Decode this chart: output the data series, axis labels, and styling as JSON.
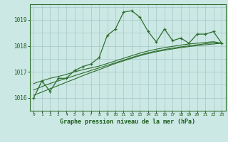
{
  "title": "Graphe pression niveau de la mer (hPa)",
  "bg_color": "#cce8e4",
  "grid_color": "#aacccc",
  "line_color": "#2d6e2d",
  "marker_color": "#2d6e2d",
  "x_labels": [
    "0",
    "1",
    "2",
    "3",
    "4",
    "5",
    "6",
    "7",
    "8",
    "9",
    "10",
    "11",
    "12",
    "13",
    "14",
    "15",
    "16",
    "17",
    "18",
    "19",
    "20",
    "21",
    "22",
    "23"
  ],
  "ylim": [
    1015.5,
    1019.6
  ],
  "yticks": [
    1016,
    1017,
    1018,
    1019
  ],
  "main_series": [
    1016.0,
    1016.65,
    1016.25,
    1016.75,
    1016.75,
    1017.05,
    1017.2,
    1017.3,
    1017.55,
    1018.4,
    1018.65,
    1019.3,
    1019.35,
    1019.1,
    1018.55,
    1018.15,
    1018.65,
    1018.2,
    1018.3,
    1018.1,
    1018.45,
    1018.45,
    1018.55,
    1018.1
  ],
  "linear_series1": [
    1016.55,
    1016.65,
    1016.75,
    1016.82,
    1016.9,
    1017.0,
    1017.08,
    1017.15,
    1017.22,
    1017.32,
    1017.42,
    1017.52,
    1017.62,
    1017.72,
    1017.8,
    1017.87,
    1017.93,
    1017.98,
    1018.03,
    1018.07,
    1018.1,
    1018.13,
    1018.16,
    1018.1
  ],
  "linear_series2": [
    1016.3,
    1016.43,
    1016.55,
    1016.65,
    1016.75,
    1016.85,
    1016.95,
    1017.05,
    1017.15,
    1017.25,
    1017.35,
    1017.45,
    1017.55,
    1017.65,
    1017.73,
    1017.8,
    1017.86,
    1017.91,
    1017.96,
    1018.0,
    1018.04,
    1018.08,
    1018.12,
    1018.1
  ],
  "linear_series3": [
    1016.1,
    1016.22,
    1016.35,
    1016.47,
    1016.6,
    1016.72,
    1016.85,
    1016.97,
    1017.08,
    1017.2,
    1017.32,
    1017.42,
    1017.52,
    1017.62,
    1017.7,
    1017.77,
    1017.83,
    1017.88,
    1017.93,
    1017.97,
    1018.01,
    1018.04,
    1018.07,
    1018.1
  ]
}
